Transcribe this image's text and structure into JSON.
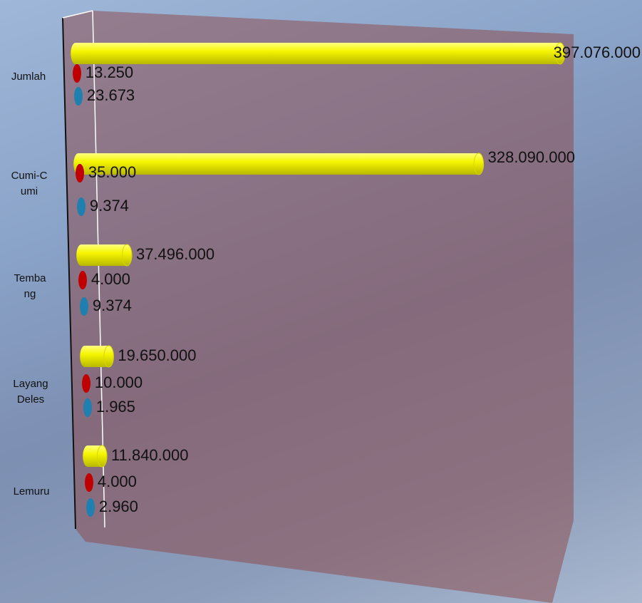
{
  "chart_data": {
    "type": "bar3d",
    "categories": [
      "Jumlah",
      "Cumi-Cumi",
      "Tembang",
      "Layang Deles",
      "Lemuru"
    ],
    "series": [
      {
        "color": "#f2f200",
        "values": [
          397076000,
          328090000,
          37496000,
          19650000,
          11840000
        ],
        "value_labels": [
          "397.076.000",
          "328.090.000",
          "37.496.000",
          "19.650.000",
          "11.840.000"
        ]
      },
      {
        "color": "#c00000",
        "values": [
          13250,
          35000,
          4000,
          10000,
          4000
        ],
        "value_labels": [
          "13.250",
          "35.000",
          "4.000",
          "10.000",
          "4.000"
        ]
      },
      {
        "color": "#1f7fae",
        "values": [
          23673,
          9374,
          9374,
          1965,
          2960
        ],
        "value_labels": [
          "23.673",
          "9.374",
          "9.374",
          "1.965",
          "2.960"
        ]
      }
    ]
  }
}
